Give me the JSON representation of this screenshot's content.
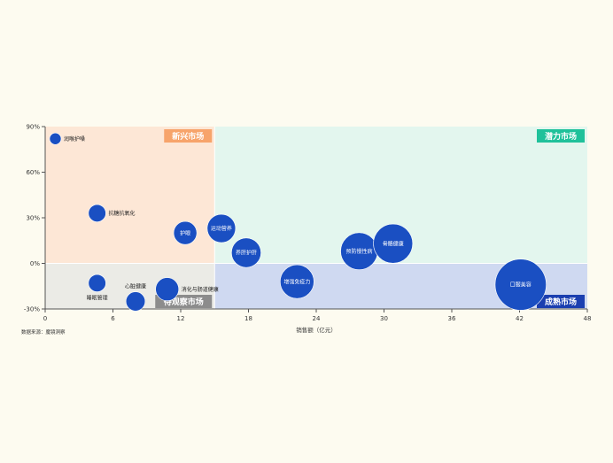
{
  "chart_data": {
    "type": "scatter",
    "xlabel": "销售额（亿元）",
    "ylabel": "",
    "xlim": [
      0,
      48
    ],
    "ylim": [
      -30,
      90
    ],
    "x_ticks": [
      0,
      6,
      12,
      18,
      24,
      30,
      36,
      42,
      48
    ],
    "x_tick_labels": [
      "0",
      "6",
      "12",
      "18",
      "24",
      "30",
      "36",
      "42",
      "48"
    ],
    "y_ticks": [
      -30,
      0,
      30,
      60,
      90
    ],
    "y_tick_labels": [
      "-30%",
      "0%",
      "30%",
      "60%",
      "90%"
    ],
    "x_divider": 15,
    "y_divider": 0,
    "quadrants": [
      {
        "name": "新兴市场",
        "x_range": [
          0,
          15
        ],
        "y_range": [
          0,
          90
        ],
        "fill": "#fde7d6",
        "label_bg": "#f7a46b",
        "corner": "top-right"
      },
      {
        "name": "潜力市场",
        "x_range": [
          15,
          48
        ],
        "y_range": [
          0,
          90
        ],
        "fill": "#e3f6ee",
        "label_bg": "#1fc19a",
        "corner": "top-right"
      },
      {
        "name": "待观察市场",
        "x_range": [
          0,
          15
        ],
        "y_range": [
          -30,
          0
        ],
        "fill": "#ebebe6",
        "label_bg": "#8c8c8c",
        "corner": "bottom-right"
      },
      {
        "name": "成熟市场",
        "x_range": [
          15,
          48
        ],
        "y_range": [
          -30,
          0
        ],
        "fill": "#cfd9f1",
        "label_bg": "#1b3fb0",
        "corner": "bottom-right"
      }
    ],
    "bubble_color": "#1a4fc2",
    "points": [
      {
        "name": "润喉护嗓",
        "x": 0.9,
        "y": 82,
        "size": 0.4,
        "label_pos": "right"
      },
      {
        "name": "抗糖抗氧化",
        "x": 4.6,
        "y": 33,
        "size": 0.9,
        "label_pos": "right"
      },
      {
        "name": "睡眠管理",
        "x": 4.6,
        "y": -13,
        "size": 0.9,
        "label_pos": "below"
      },
      {
        "name": "心脏健康",
        "x": 8.0,
        "y": -25,
        "size": 1.1,
        "label_pos": "above"
      },
      {
        "name": "消化与肠道健康",
        "x": 10.8,
        "y": -17,
        "size": 1.6,
        "label_pos": "right"
      },
      {
        "name": "护眼",
        "x": 12.4,
        "y": 20,
        "size": 1.6,
        "label_pos": "inside"
      },
      {
        "name": "运动营养",
        "x": 15.6,
        "y": 23,
        "size": 2.4,
        "label_pos": "inside"
      },
      {
        "name": "养肝护肝",
        "x": 17.8,
        "y": 7,
        "size": 2.6,
        "label_pos": "inside"
      },
      {
        "name": "增强免疫力",
        "x": 22.3,
        "y": -12,
        "size": 3.4,
        "label_pos": "inside"
      },
      {
        "name": "预防慢性病",
        "x": 27.8,
        "y": 8,
        "size": 4.1,
        "label_pos": "inside"
      },
      {
        "name": "骨骼健康",
        "x": 30.8,
        "y": 13,
        "size": 4.6,
        "label_pos": "inside"
      },
      {
        "name": "口服美容",
        "x": 42.1,
        "y": -14,
        "size": 7.8,
        "label_pos": "inside"
      }
    ],
    "grid": false,
    "legend": "none"
  },
  "source_note": "数据来源：魔镜洞察"
}
